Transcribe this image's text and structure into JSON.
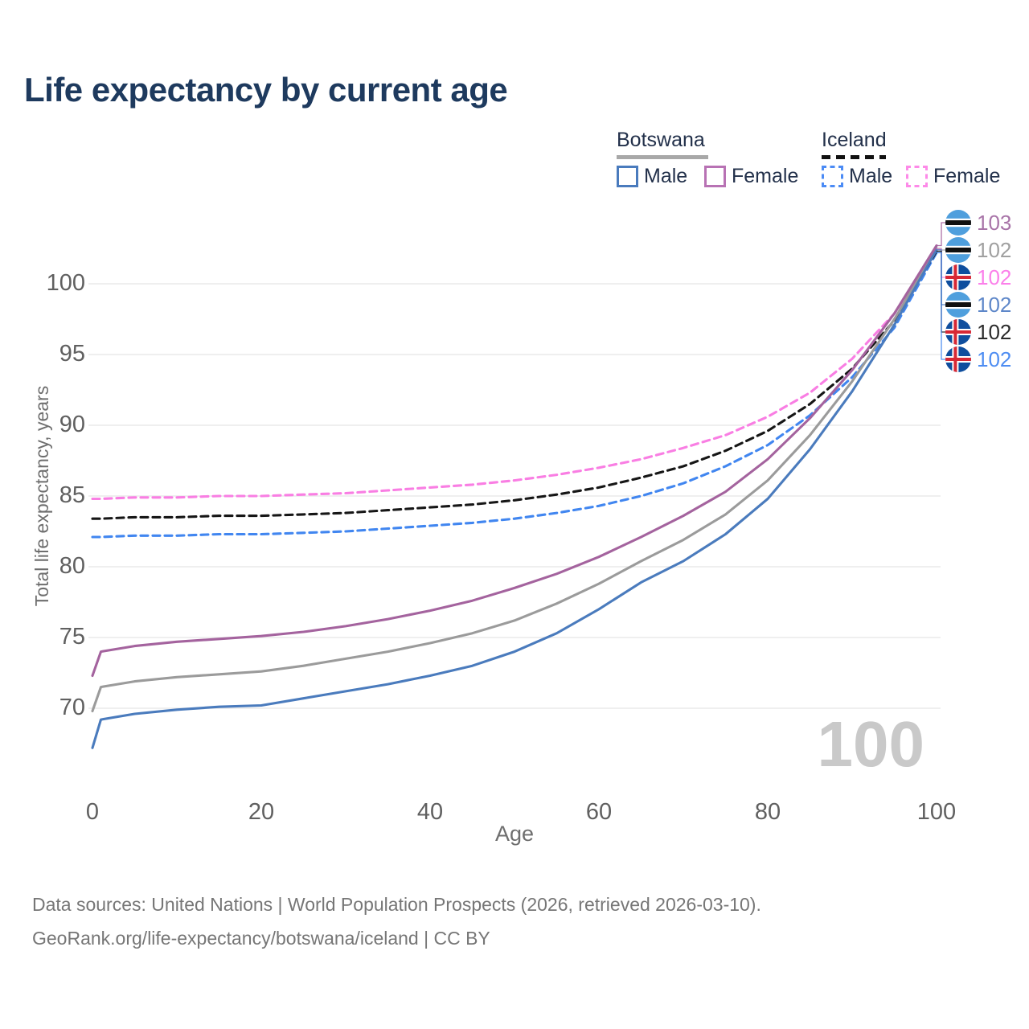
{
  "title": "Life expectancy by current age",
  "legend": {
    "botswana": {
      "label": "Botswana",
      "style": "solid",
      "underline_color": "#a8a8a8",
      "male_label": "Male",
      "male_color": "#4a7bbd",
      "female_label": "Female",
      "female_color": "#b872b4"
    },
    "iceland": {
      "label": "Iceland",
      "style": "dashed",
      "underline_color": "#111111",
      "male_label": "Male",
      "male_color": "#4b8bf5",
      "female_label": "Female",
      "female_color": "#fd8ae8"
    }
  },
  "chart_data": {
    "type": "line",
    "title": "Life expectancy by current age",
    "xlabel": "Age",
    "ylabel": "Total life expectancy, years",
    "xlim": [
      0,
      100
    ],
    "ylim": [
      64,
      104
    ],
    "xticks": [
      0,
      20,
      40,
      60,
      80,
      100
    ],
    "yticks": [
      70,
      75,
      80,
      85,
      90,
      95,
      100
    ],
    "grid": true,
    "legend_position": "top-right",
    "watermark": "100",
    "x": [
      0,
      1,
      5,
      10,
      15,
      20,
      25,
      30,
      35,
      40,
      45,
      50,
      55,
      60,
      65,
      70,
      75,
      80,
      85,
      90,
      95,
      100
    ],
    "series": [
      {
        "name": "Botswana Male",
        "country": "Botswana",
        "sex": "Male",
        "style": "solid",
        "color": "#4a7bbd",
        "flag": "botswana",
        "end_label": "102",
        "end_label_color": "#5e87c9",
        "values": [
          67.2,
          69.2,
          69.6,
          69.9,
          70.1,
          70.2,
          70.7,
          71.2,
          71.7,
          72.3,
          73.0,
          74.0,
          75.3,
          77.0,
          78.9,
          80.4,
          82.3,
          84.8,
          88.3,
          92.4,
          97.1,
          102.4
        ]
      },
      {
        "name": "Botswana Female",
        "country": "Botswana",
        "sex": "Female",
        "style": "solid",
        "color": "#a4639e",
        "flag": "botswana",
        "end_label": "103",
        "end_label_color": "#a874a8",
        "values": [
          72.3,
          74.0,
          74.4,
          74.7,
          74.9,
          75.1,
          75.4,
          75.8,
          76.3,
          76.9,
          77.6,
          78.5,
          79.5,
          80.7,
          82.1,
          83.6,
          85.3,
          87.6,
          90.5,
          93.9,
          97.9,
          102.7
        ]
      },
      {
        "name": "Botswana Both sexes",
        "country": "Botswana",
        "sex": "Both",
        "style": "solid",
        "color": "#9b9b9b",
        "flag": "botswana",
        "end_label": "102",
        "end_label_color": "#a0a0a0",
        "values": [
          69.8,
          71.5,
          71.9,
          72.2,
          72.4,
          72.6,
          73.0,
          73.5,
          74.0,
          74.6,
          75.3,
          76.2,
          77.4,
          78.8,
          80.4,
          81.9,
          83.7,
          86.1,
          89.3,
          93.1,
          97.5,
          102.5
        ]
      },
      {
        "name": "Iceland Male",
        "country": "Iceland",
        "sex": "Male",
        "style": "dashed",
        "color": "#4186f0",
        "flag": "iceland",
        "end_label": "102",
        "end_label_color": "#4e8df2",
        "values": [
          82.1,
          82.1,
          82.2,
          82.2,
          82.3,
          82.3,
          82.4,
          82.5,
          82.7,
          82.9,
          83.1,
          83.4,
          83.8,
          84.3,
          85.0,
          85.9,
          87.1,
          88.6,
          90.7,
          93.4,
          96.9,
          102.2
        ]
      },
      {
        "name": "Iceland Female",
        "country": "Iceland",
        "sex": "Female",
        "style": "dashed",
        "color": "#f97ee3",
        "flag": "iceland",
        "end_label": "102",
        "end_label_color": "#fb80ea",
        "values": [
          84.8,
          84.8,
          84.9,
          84.9,
          85.0,
          85.0,
          85.1,
          85.2,
          85.4,
          85.6,
          85.8,
          86.1,
          86.5,
          87.0,
          87.6,
          88.4,
          89.3,
          90.6,
          92.3,
          94.7,
          97.9,
          102.45
        ]
      },
      {
        "name": "Iceland Both sexes",
        "country": "Iceland",
        "sex": "Both",
        "style": "dashed",
        "color": "#161616",
        "flag": "iceland",
        "end_label": "102",
        "end_label_color": "#2b2b2b",
        "values": [
          83.4,
          83.4,
          83.5,
          83.5,
          83.6,
          83.6,
          83.7,
          83.8,
          84.0,
          84.2,
          84.4,
          84.7,
          85.1,
          85.6,
          86.3,
          87.1,
          88.2,
          89.6,
          91.5,
          94.0,
          97.4,
          102.3
        ]
      }
    ]
  },
  "footer": {
    "line1": "Data sources: United Nations | World Population Prospects (2026, retrieved 2026-03-10).",
    "line2": "GeoRank.org/life-expectancy/botswana/iceland | CC BY"
  }
}
